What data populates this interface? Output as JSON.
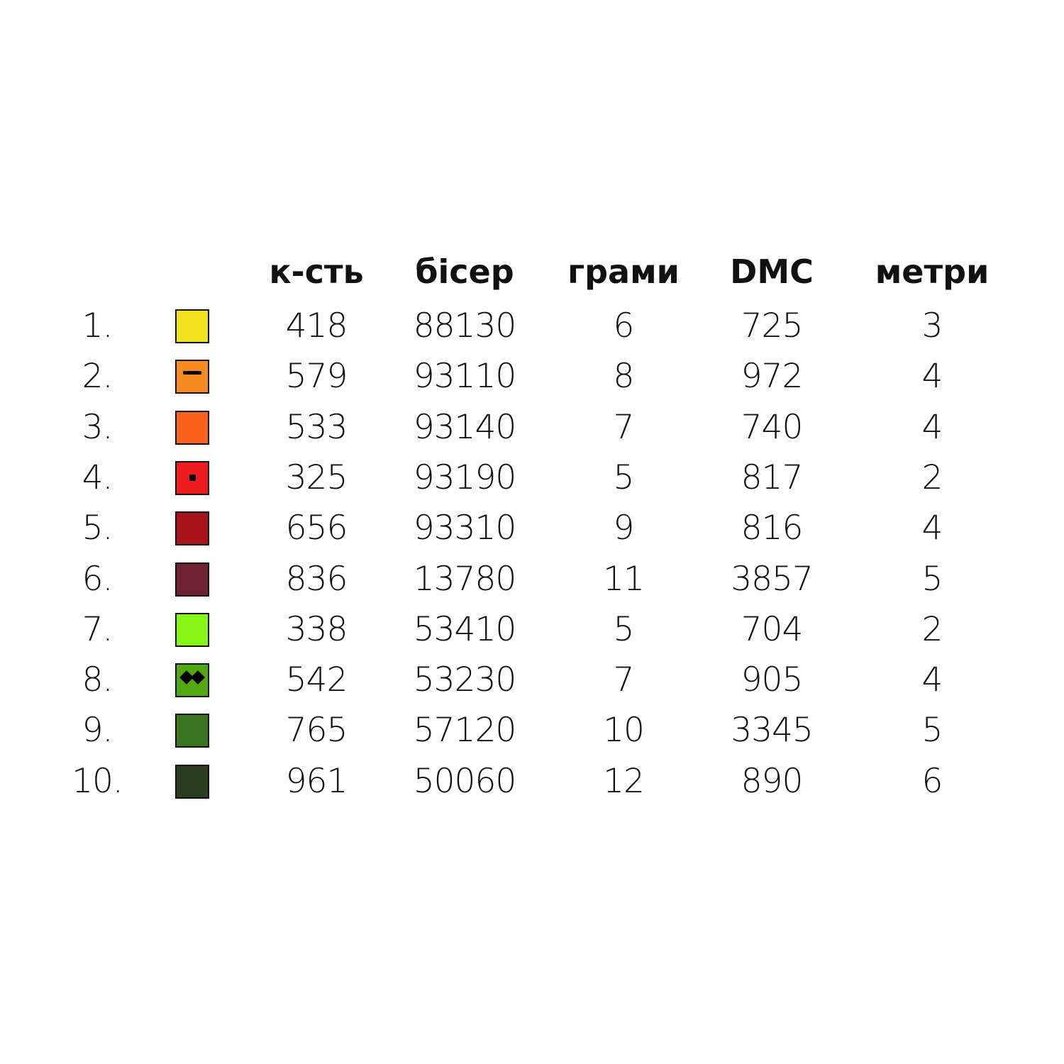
{
  "headers": [
    "к-сть",
    "бісер",
    "грами",
    "DMC",
    "метри"
  ],
  "rows": [
    {
      "num": "1.",
      "color": "#f0e020",
      "symbol": "none",
      "qty": "418",
      "bead": "88130",
      "grams": "6",
      "dmc": "725",
      "meters": "3"
    },
    {
      "num": "2.",
      "color": "#f68a20",
      "symbol": "dash",
      "qty": "579",
      "bead": "93110",
      "grams": "8",
      "dmc": "972",
      "meters": "4"
    },
    {
      "num": "3.",
      "color": "#fa6018",
      "symbol": "none",
      "qty": "533",
      "bead": "93140",
      "grams": "7",
      "dmc": "740",
      "meters": "4"
    },
    {
      "num": "4.",
      "color": "#ee1c1c",
      "symbol": "dot",
      "qty": "325",
      "bead": "93190",
      "grams": "5",
      "dmc": "817",
      "meters": "2"
    },
    {
      "num": "5.",
      "color": "#a8141a",
      "symbol": "none",
      "qty": "656",
      "bead": "93310",
      "grams": "9",
      "dmc": "816",
      "meters": "4"
    },
    {
      "num": "6.",
      "color": "#6e2430",
      "symbol": "none",
      "qty": "836",
      "bead": "13780",
      "grams": "11",
      "dmc": "3857",
      "meters": "5"
    },
    {
      "num": "7.",
      "color": "#86f414",
      "symbol": "none",
      "qty": "338",
      "bead": "53410",
      "grams": "5",
      "dmc": "704",
      "meters": "2"
    },
    {
      "num": "8.",
      "color": "#52a810",
      "symbol": "diamonds",
      "qty": "542",
      "bead": "53230",
      "grams": "7",
      "dmc": "905",
      "meters": "4"
    },
    {
      "num": "9.",
      "color": "#3a741c",
      "symbol": "none",
      "qty": "765",
      "bead": "57120",
      "grams": "10",
      "dmc": "3345",
      "meters": "5"
    },
    {
      "num": "10.",
      "color": "#2a3e1e",
      "symbol": "none",
      "qty": "961",
      "bead": "50060",
      "grams": "12",
      "dmc": "890",
      "meters": "6"
    }
  ]
}
